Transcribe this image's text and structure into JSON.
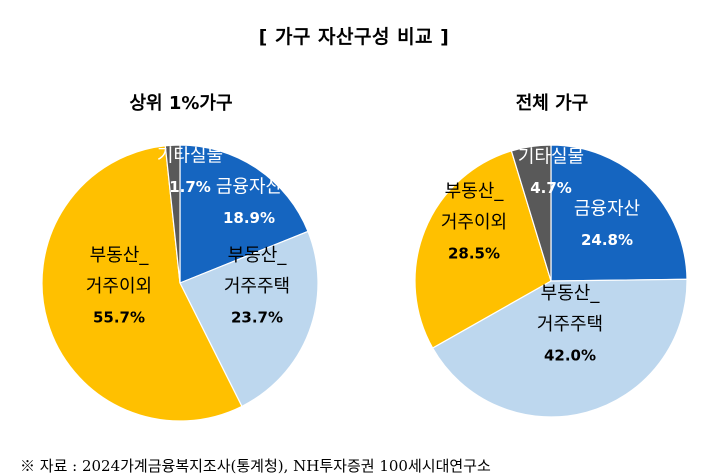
{
  "main_title": "[ 가구 자산구성 비교 ]",
  "source": "※ 자료 : 2024가계금융복지조사(통계청), NH투자증권 100세시대연구소",
  "colors": {
    "financial": "#1565c0",
    "housing": "#bdd7ee",
    "real_estate_other": "#ffc000",
    "other_physical": "#595959"
  },
  "chart_data": [
    {
      "type": "pie",
      "title": "상위 1%가구",
      "slices": [
        {
          "label_lines": [
            "금융자산"
          ],
          "value_label": "18.9%",
          "value": 18.9,
          "color_key": "financial"
        },
        {
          "label_lines": [
            "부동산_",
            "거주주택"
          ],
          "value_label": "23.7%",
          "value": 23.7,
          "color_key": "housing"
        },
        {
          "label_lines": [
            "부동산_",
            "거주이외"
          ],
          "value_label": "55.7%",
          "value": 55.7,
          "color_key": "real_estate_other"
        },
        {
          "label_lines": [
            "기타실물"
          ],
          "value_label": "1.7%",
          "value": 1.7,
          "color_key": "other_physical"
        }
      ]
    },
    {
      "type": "pie",
      "title": "전체 가구",
      "slices": [
        {
          "label_lines": [
            "금융자산"
          ],
          "value_label": "24.8%",
          "value": 24.8,
          "color_key": "financial"
        },
        {
          "label_lines": [
            "부동산_",
            "거주주택"
          ],
          "value_label": "42.0%",
          "value": 42.0,
          "color_key": "housing"
        },
        {
          "label_lines": [
            "부동산_",
            "거주이외"
          ],
          "value_label": "28.5%",
          "value": 28.5,
          "color_key": "real_estate_other"
        },
        {
          "label_lines": [
            "기타실물"
          ],
          "value_label": "4.7%",
          "value": 4.7,
          "color_key": "other_physical"
        }
      ]
    }
  ]
}
